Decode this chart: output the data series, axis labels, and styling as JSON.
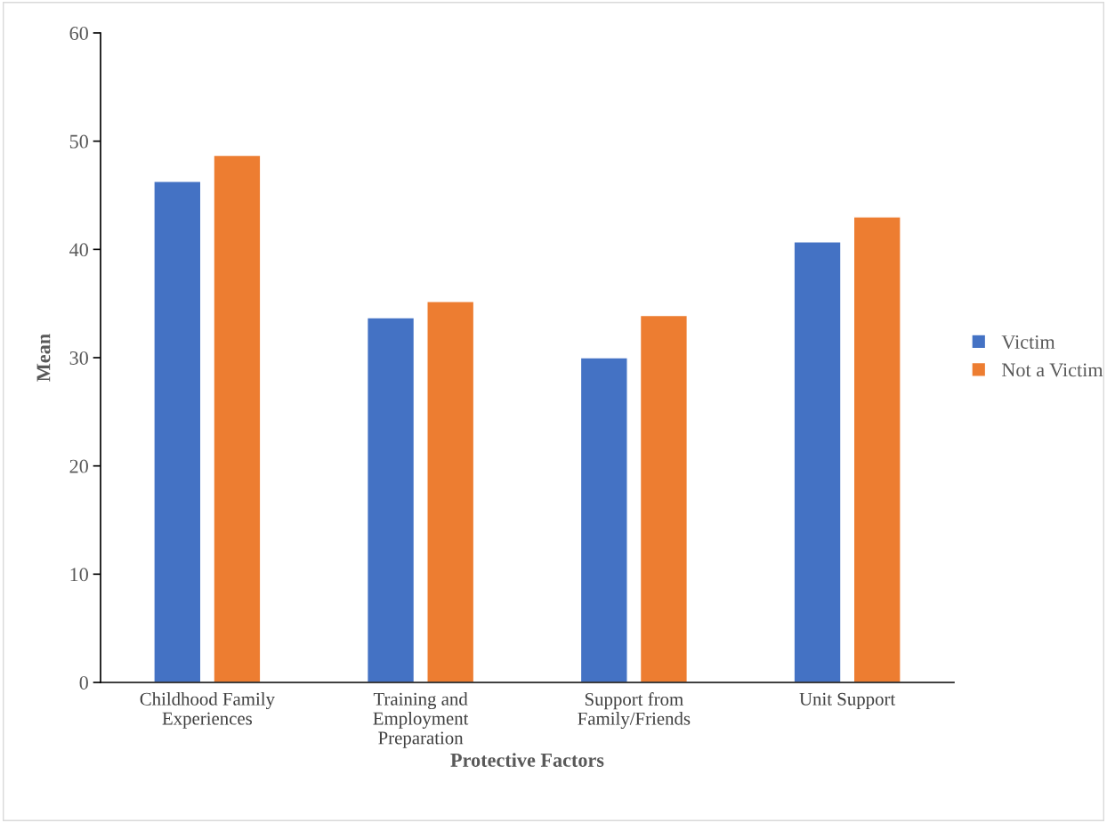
{
  "chart_data": {
    "type": "bar",
    "xlabel": "Protective Factors",
    "ylabel": "Mean",
    "categories": [
      "Childhood Family\nExperiences",
      "Training and\nEmployment\nPreparation",
      "Support from\nFamily/Friends",
      "Unit Support"
    ],
    "series": [
      {
        "name": "Victim",
        "color": "#4472c4",
        "values": [
          46.3,
          33.7,
          30.0,
          40.7
        ]
      },
      {
        "name": "Not a Victim",
        "color": "#ed7d31",
        "values": [
          48.7,
          35.2,
          33.9,
          43.0
        ]
      }
    ],
    "ylim": [
      0,
      60
    ],
    "yticks": [
      0,
      10,
      20,
      30,
      40,
      50,
      60
    ],
    "grid": false,
    "legend": "right"
  }
}
